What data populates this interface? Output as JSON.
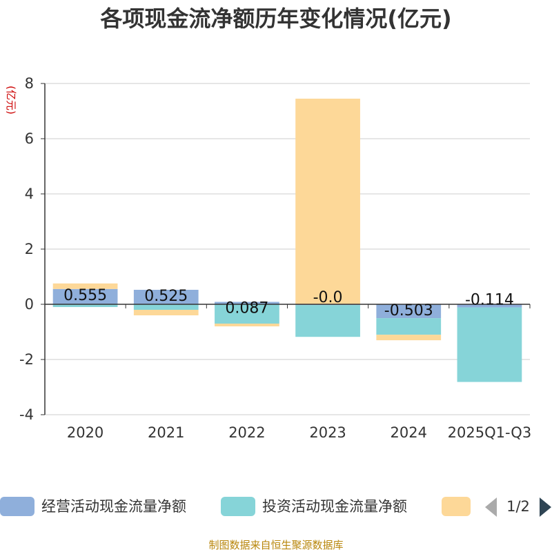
{
  "chart_data": {
    "type": "bar",
    "stacked": true,
    "title": "各项现金流净额历年变化情况(亿元)",
    "unit": "(亿元)",
    "categories": [
      "2020",
      "2021",
      "2022",
      "2023",
      "2024",
      "2025Q1-Q3"
    ],
    "ylim": [
      -4,
      8
    ],
    "yticks": [
      -4,
      -2,
      0,
      2,
      4,
      6,
      8
    ],
    "grid": true,
    "series": [
      {
        "name": "经营活动现金流量净额",
        "color": "#8fafdb",
        "values": [
          0.555,
          0.525,
          0.087,
          -0.03,
          -0.503,
          -0.114
        ],
        "labels": [
          "0.555",
          "0.525",
          "0.087",
          "-0.0",
          "-0.503",
          "-0.114"
        ]
      },
      {
        "name": "投资活动现金流量净额",
        "color": "#86d4d8",
        "values": [
          -0.1,
          -0.2,
          -0.7,
          -1.15,
          -0.6,
          -2.7
        ]
      },
      {
        "name": "",
        "color": "#fdd898",
        "values": [
          0.2,
          -0.2,
          -0.1,
          7.45,
          -0.2,
          0.0
        ]
      }
    ],
    "legend": {
      "position": "bottom",
      "page": "1/2"
    }
  },
  "source": "制图数据来自恒生聚源数据库"
}
